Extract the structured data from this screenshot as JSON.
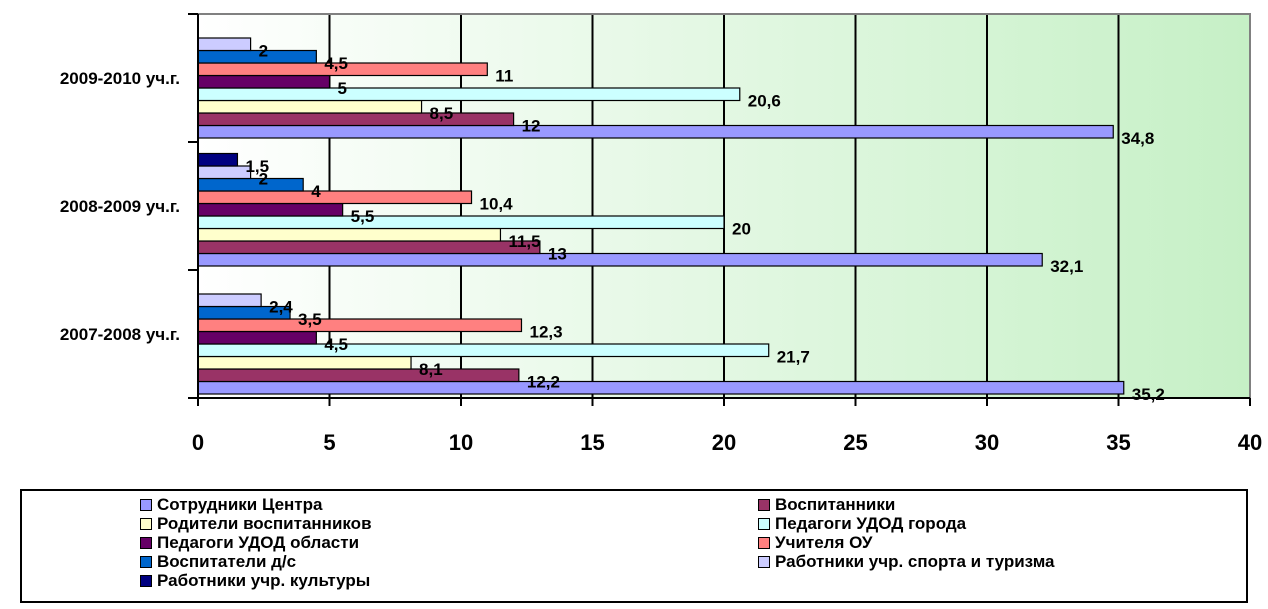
{
  "chart_data": {
    "type": "bar",
    "orientation": "horizontal",
    "categories": [
      "2009-2010 уч.г.",
      "2008-2009 уч.г.",
      "2007-2008 уч.г."
    ],
    "xlim": [
      0,
      40
    ],
    "xticks": [
      "0",
      "5",
      "10",
      "15",
      "20",
      "25",
      "30",
      "35",
      "40"
    ],
    "grid": "vertical",
    "legend_position": "bottom",
    "series": [
      {
        "name": "Сотрудники Центра",
        "color": "#9999ff",
        "values": [
          34.8,
          32.1,
          35.2
        ],
        "labels": [
          "34,8",
          "32,1",
          "35,2"
        ]
      },
      {
        "name": "Воспитанники",
        "color": "#993366",
        "values": [
          12,
          13,
          12.2
        ],
        "labels": [
          "12",
          "13",
          "12,2"
        ]
      },
      {
        "name": "Родители воспитанников",
        "color": "#ffffcc",
        "values": [
          8.5,
          11.5,
          8.1
        ],
        "labels": [
          "8,5",
          "11,5",
          "8,1"
        ]
      },
      {
        "name": "Педагоги УДОД города",
        "color": "#ccffff",
        "values": [
          20.6,
          20,
          21.7
        ],
        "labels": [
          "20,6",
          "20",
          "21,7"
        ]
      },
      {
        "name": "Педагоги УДОД области",
        "color": "#660066",
        "values": [
          5,
          5.5,
          4.5
        ],
        "labels": [
          "5",
          "5,5",
          "4,5"
        ]
      },
      {
        "name": "Учителя ОУ",
        "color": "#ff8080",
        "values": [
          11,
          10.4,
          12.3
        ],
        "labels": [
          "11",
          "10,4",
          "12,3"
        ]
      },
      {
        "name": "Воспитатели д/с",
        "color": "#0066cc",
        "values": [
          4.5,
          4,
          3.5
        ],
        "labels": [
          "4,5",
          "4",
          "3,5"
        ]
      },
      {
        "name": "Работники учр. спорта и туризма",
        "color": "#ccccff",
        "values": [
          2,
          2,
          2.4
        ],
        "labels": [
          "2",
          "2",
          "2,4"
        ]
      },
      {
        "name": "Работники учр. культуры",
        "color": "#000080",
        "values": [
          null,
          1.5,
          null
        ],
        "labels": [
          "",
          "1,5",
          ""
        ]
      }
    ]
  }
}
